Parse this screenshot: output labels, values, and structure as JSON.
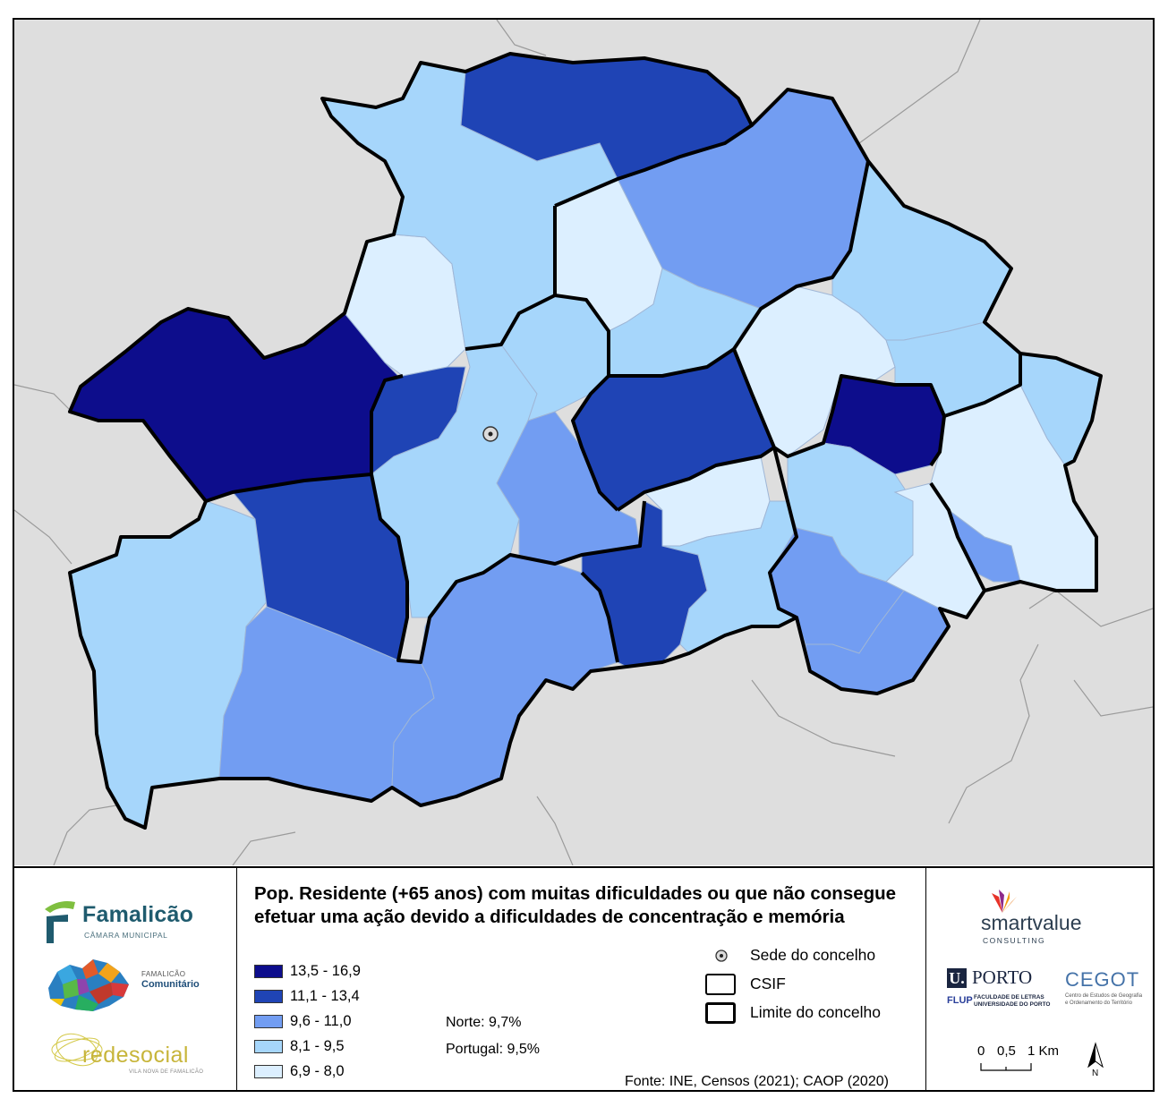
{
  "legend": {
    "title": "Pop. Residente (+65 anos) com muitas dificuldades ou que não consegue efetuar uma ação devido a dificuldades de concentração e memória",
    "classes": [
      {
        "label": "13,5 - 16,9",
        "color": "#0d0d8c"
      },
      {
        "label": "11,1 - 13,4",
        "color": "#1f44b5"
      },
      {
        "label": "9,6 - 11,0",
        "color": "#729df2"
      },
      {
        "label": "8,1 - 9,5",
        "color": "#a6d6fb"
      },
      {
        "label": "6,9 - 8,0",
        "color": "#dcefff"
      }
    ],
    "stats": {
      "norte": "Norte: 9,7%",
      "portugal": "Portugal: 9,5%"
    },
    "symbols": {
      "sede": "Sede do concelho",
      "csif": "CSIF",
      "limite": "Limite do concelho"
    },
    "source": "Fonte: INE, Censos (2021); CAOP (2020)"
  },
  "logos": {
    "famalicao": {
      "name": "Famalicão",
      "subtitle": "CÂMARA MUNICIPAL"
    },
    "comunitario": {
      "small": "FAMALICÃO",
      "name": "Comunitário"
    },
    "redesocial": {
      "name": "redesocial",
      "subtitle": "VILA NOVA DE FAMALICÃO"
    },
    "smartvalue": {
      "name": "smartvalue",
      "subtitle": "CONSULTING"
    },
    "uporto": {
      "u": "U.",
      "name": "PORTO",
      "flup": "FLUP",
      "faculdade": "FACULDADE DE LETRAS UNIVERSIDADE DO PORTO"
    },
    "cegot": {
      "name": "CEGOT",
      "subtitle": "Centro de Estudos de Geografia e Ordenamento do Território"
    }
  },
  "scale": {
    "t0": "0",
    "t1": "0,5",
    "t2": "1 Km"
  },
  "north": "N",
  "colors": {
    "background": "#dedede",
    "outside_lines": "#9a9a9a",
    "boundary": "#000000",
    "internal_lines": "#9fb6d6"
  }
}
